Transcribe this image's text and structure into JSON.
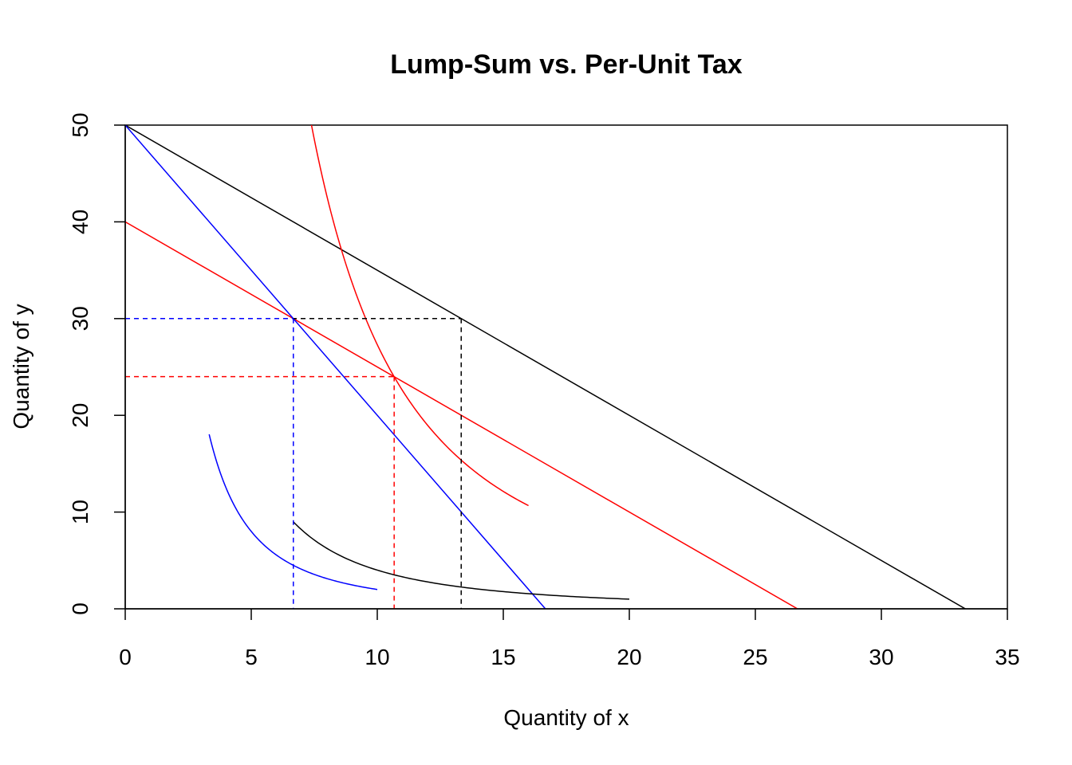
{
  "chart_data": {
    "type": "line",
    "title": "Lump-Sum vs. Per-Unit Tax",
    "xlabel": "Quantity of x",
    "ylabel": "Quantity of y",
    "xlim": [
      0,
      35
    ],
    "ylim": [
      0,
      50
    ],
    "xticks": [
      0,
      5,
      10,
      15,
      20,
      25,
      30,
      35
    ],
    "yticks": [
      0,
      10,
      20,
      30,
      40,
      50
    ],
    "grid": false,
    "colors": {
      "black": "#000000",
      "red": "#ff0000",
      "blue": "#0000ff"
    },
    "budget_lines": [
      {
        "key": "original",
        "color": "#000000",
        "points": [
          [
            0,
            50
          ],
          [
            33.33,
            0
          ]
        ]
      },
      {
        "key": "lump-sum",
        "color": "#ff0000",
        "points": [
          [
            0,
            40
          ],
          [
            26.67,
            0
          ]
        ]
      },
      {
        "key": "per-unit",
        "color": "#0000ff",
        "points": [
          [
            0,
            50
          ],
          [
            16.67,
            0
          ]
        ]
      }
    ],
    "indifference_curves": [
      {
        "key": "original",
        "color": "#000000",
        "x_from": 6.67,
        "x_to": 20,
        "k": 400,
        "exponent": 2
      },
      {
        "key": "lump-sum",
        "color": "#ff0000",
        "x_from": 5.33,
        "x_to": 16,
        "k": 2730.7,
        "exponent": 2
      },
      {
        "key": "per-unit",
        "color": "#0000ff",
        "x_from": 3.33,
        "x_to": 10,
        "k": 200,
        "exponent": 2
      }
    ],
    "optimum_guides": [
      {
        "key": "original",
        "color": "#000000",
        "x": 13.33,
        "y": 30
      },
      {
        "key": "lump-sum",
        "color": "#ff0000",
        "x": 10.67,
        "y": 24
      },
      {
        "key": "per-unit",
        "color": "#0000ff",
        "x": 6.67,
        "y": 30
      }
    ]
  }
}
